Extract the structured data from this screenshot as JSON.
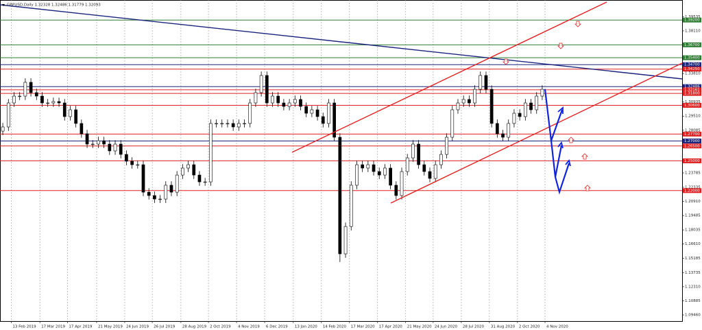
{
  "chart_data": {
    "type": "candlestick",
    "title": "GBPUSD,Daily  1.32328 1.32486 1.31779 1.32093",
    "open": [
      1.28,
      1.2842,
      1.3084,
      1.3153,
      1.3153,
      1.3292,
      1.3188,
      1.3153,
      1.3084,
      1.3084,
      1.3098,
      1.3084,
      1.2946,
      1.3015,
      1.2877,
      1.2773,
      1.2669,
      1.2669,
      1.2703,
      1.2669,
      1.26,
      1.2669,
      1.2565,
      1.2496,
      1.2461,
      1.2461,
      1.2184,
      1.215,
      1.2115,
      1.2115,
      1.2254,
      1.2184,
      1.2357,
      1.2427,
      1.2461,
      1.2357,
      1.2288,
      1.2288,
      1.2877,
      1.2877,
      1.2877,
      1.2877,
      1.2842,
      1.2877,
      1.2877,
      1.3084,
      1.3188,
      1.3361,
      1.3084,
      1.3153,
      1.3084,
      1.3049,
      1.3084,
      1.3119,
      1.3049,
      1.298,
      1.3015,
      1.2946,
      1.2877,
      1.3084,
      1.2738,
      1.1562,
      1.1838,
      1.2254,
      1.2461,
      1.2427,
      1.2461,
      1.2392,
      1.2357,
      1.2427,
      1.2254,
      1.215,
      1.2392,
      1.253,
      1.2669,
      1.2461,
      1.2392,
      1.2323,
      1.2461,
      1.2565,
      1.2738,
      1.3015,
      1.3084,
      1.3119,
      1.3084,
      1.3222,
      1.3361,
      1.3222,
      1.2877,
      1.2773,
      1.2738,
      1.2877,
      1.298,
      1.2946,
      1.3084,
      1.3015,
      1.3153
    ],
    "high": [
      1.2882,
      1.3124,
      1.3193,
      1.3193,
      1.3332,
      1.3332,
      1.3228,
      1.3193,
      1.3124,
      1.3138,
      1.3138,
      1.3124,
      1.3055,
      1.3055,
      1.2917,
      1.2813,
      1.2709,
      1.2743,
      1.2743,
      1.2709,
      1.2709,
      1.2709,
      1.2605,
      1.2536,
      1.2501,
      1.2501,
      1.2224,
      1.219,
      1.2155,
      1.2294,
      1.2294,
      1.2397,
      1.2467,
      1.2501,
      1.2501,
      1.2397,
      1.2328,
      1.2917,
      1.2917,
      1.2917,
      1.2917,
      1.2917,
      1.2917,
      1.2917,
      1.3124,
      1.3228,
      1.3401,
      1.3401,
      1.3193,
      1.3193,
      1.3124,
      1.3124,
      1.3159,
      1.3159,
      1.3089,
      1.3055,
      1.3055,
      1.2986,
      1.3124,
      1.3124,
      1.2778,
      1.1878,
      1.2294,
      1.2501,
      1.2501,
      1.2501,
      1.2501,
      1.2432,
      1.2467,
      1.2467,
      1.2294,
      1.2432,
      1.257,
      1.2709,
      1.2709,
      1.2501,
      1.2432,
      1.2501,
      1.2605,
      1.2778,
      1.3055,
      1.3124,
      1.3159,
      1.3159,
      1.3262,
      1.3401,
      1.3401,
      1.3262,
      1.2917,
      1.2813,
      1.2917,
      1.302,
      1.302,
      1.3124,
      1.3124,
      1.3193,
      1.3262
    ],
    "low": [
      1.276,
      1.2802,
      1.3044,
      1.3113,
      1.3113,
      1.3148,
      1.3113,
      1.3044,
      1.3044,
      1.3044,
      1.3044,
      1.2906,
      1.2906,
      1.2837,
      1.2733,
      1.2629,
      1.2629,
      1.2629,
      1.2629,
      1.256,
      1.256,
      1.2525,
      1.2456,
      1.2421,
      1.2421,
      1.2144,
      1.211,
      1.2075,
      1.2075,
      1.2075,
      1.2144,
      1.2144,
      1.2317,
      1.2387,
      1.2317,
      1.2248,
      1.2248,
      1.2248,
      1.2837,
      1.2837,
      1.2837,
      1.2802,
      1.2802,
      1.2837,
      1.2837,
      1.3044,
      1.3148,
      1.3044,
      1.3044,
      1.3044,
      1.3009,
      1.3009,
      1.3044,
      1.3009,
      1.294,
      1.294,
      1.2906,
      1.2837,
      1.2837,
      1.2698,
      1.148,
      1.1522,
      1.1798,
      1.2214,
      1.2387,
      1.2387,
      1.2352,
      1.2317,
      1.2317,
      1.2214,
      1.211,
      1.211,
      1.2352,
      1.249,
      1.2421,
      1.2352,
      1.2283,
      1.2283,
      1.2421,
      1.2525,
      1.2698,
      1.2975,
      1.3044,
      1.3044,
      1.3044,
      1.3182,
      1.3182,
      1.2837,
      1.2733,
      1.2698,
      1.2698,
      1.2837,
      1.2906,
      1.2906,
      1.2975,
      1.2975,
      1.3113
    ],
    "close": [
      1.2842,
      1.3084,
      1.3153,
      1.3153,
      1.3292,
      1.3188,
      1.3153,
      1.3084,
      1.3084,
      1.3098,
      1.3084,
      1.2946,
      1.3015,
      1.2877,
      1.2773,
      1.2669,
      1.2669,
      1.2703,
      1.2669,
      1.26,
      1.2669,
      1.2565,
      1.2496,
      1.2461,
      1.2461,
      1.2184,
      1.215,
      1.2115,
      1.2115,
      1.2254,
      1.2184,
      1.2357,
      1.2427,
      1.2461,
      1.2357,
      1.2288,
      1.2288,
      1.2877,
      1.2877,
      1.2877,
      1.2877,
      1.2842,
      1.2877,
      1.2877,
      1.3084,
      1.3188,
      1.3361,
      1.3084,
      1.3153,
      1.3084,
      1.3049,
      1.3084,
      1.3119,
      1.3049,
      1.298,
      1.3015,
      1.2946,
      1.2877,
      1.3084,
      1.2738,
      1.1562,
      1.1838,
      1.2254,
      1.2461,
      1.2427,
      1.2461,
      1.2392,
      1.2357,
      1.2427,
      1.2254,
      1.215,
      1.2392,
      1.253,
      1.2669,
      1.2461,
      1.2392,
      1.2323,
      1.2461,
      1.2565,
      1.2738,
      1.3015,
      1.3084,
      1.3119,
      1.3084,
      1.3222,
      1.3361,
      1.3222,
      1.2877,
      1.2773,
      1.2738,
      1.2877,
      1.298,
      1.2946,
      1.3084,
      1.3015,
      1.3153,
      1.3222
    ],
    "xlim": [
      -0.5,
      120.9
    ],
    "xticks": [
      {
        "value": 1.5,
        "label": "13 Feb 2019"
      },
      {
        "value": 6.6,
        "label": "17 Mar 2019"
      },
      {
        "value": 11.5,
        "label": "17 Apr 2019"
      },
      {
        "value": 16.7,
        "label": "21 May 2019"
      },
      {
        "value": 21.7,
        "label": "24 Jun 2019"
      },
      {
        "value": 26.6,
        "label": "26 Jul 2019"
      },
      {
        "value": 31.7,
        "label": "28 Aug 2019"
      },
      {
        "value": 36.6,
        "label": "2 Oct 2019"
      },
      {
        "value": 41.6,
        "label": "4 Nov 2019"
      },
      {
        "value": 46.6,
        "label": "6 Dec 2019"
      },
      {
        "value": 51.7,
        "label": "13 Jan 2020"
      },
      {
        "value": 56.7,
        "label": "14 Feb 2020"
      },
      {
        "value": 61.7,
        "label": "17 Mar 2020"
      },
      {
        "value": 66.7,
        "label": "17 Apr 2020"
      },
      {
        "value": 71.7,
        "label": "21 May 2020"
      },
      {
        "value": 76.6,
        "label": "24 Jun 2020"
      },
      {
        "value": 81.6,
        "label": "28 Jul 2020"
      },
      {
        "value": 86.6,
        "label": "31 Aug 2020"
      },
      {
        "value": 91.6,
        "label": "2 Oct 2020"
      },
      {
        "value": 96.5,
        "label": "4 Nov 2020"
      }
    ],
    "ylim": [
      1.0884,
      1.4122
    ],
    "yticks": [
      1.39535,
      {
        "value": 1.3811,
        "label": "1.38110"
      },
      {
        "value": 1.3381,
        "label": "1.33810"
      },
      1.30935,
      {
        "value": 1.2951,
        "label": "1.29510"
      },
      1.28085,
      1.23785,
      1.22335,
      {
        "value": 1.2091,
        "label": "1.20910"
      },
      1.19485,
      1.18035,
      {
        "value": 1.1661,
        "label": "1.16610"
      },
      1.15185,
      1.13735,
      {
        "value": 1.1231,
        "label": "1.12310"
      },
      1.10885,
      {
        "value": 1.0946,
        "label": "1.09460"
      }
    ],
    "grid": "x",
    "up_color": "#ffffff",
    "down_color": "#000000",
    "levels": [
      {
        "value": 1.392,
        "label": "1.39200",
        "color": "#2e7d32"
      },
      {
        "value": 1.367,
        "label": "1.36700",
        "color": "#2e7d32"
      },
      {
        "value": 1.354,
        "label": "1.35400",
        "color": "#2e7d32"
      },
      {
        "value": 1.347,
        "label": "1.34700",
        "color": "#1a237e"
      },
      {
        "value": 1.3425,
        "label": "1.34250",
        "color": "#e02020"
      },
      {
        "value": 1.32486,
        "label": "1.32486",
        "color": "#1a237e"
      },
      {
        "value": 1.32161,
        "label": "1.32161",
        "color": "#e02020"
      },
      {
        "value": 1.318,
        "label": "1.31800",
        "color": "#e02020"
      },
      {
        "value": 1.306,
        "label": "1.30600",
        "color": "#e02020"
      },
      {
        "value": 1.277,
        "label": "1.27700",
        "color": "#e02020"
      },
      {
        "value": 1.27,
        "label": "1.27000",
        "color": "#1a237e"
      },
      {
        "value": 1.265,
        "label": "1.26500",
        "color": "#e02020"
      },
      {
        "value": 1.25,
        "label": "1.25000",
        "color": "#e02020"
      },
      {
        "value": 1.22,
        "label": "1.22000",
        "color": "#e02020"
      }
    ]
  }
}
